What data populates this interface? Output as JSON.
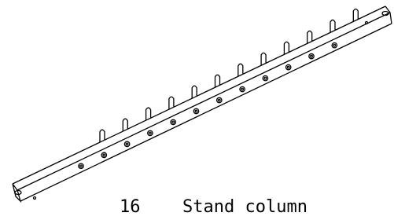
{
  "part": {
    "number": "16",
    "name": "Stand column"
  }
}
